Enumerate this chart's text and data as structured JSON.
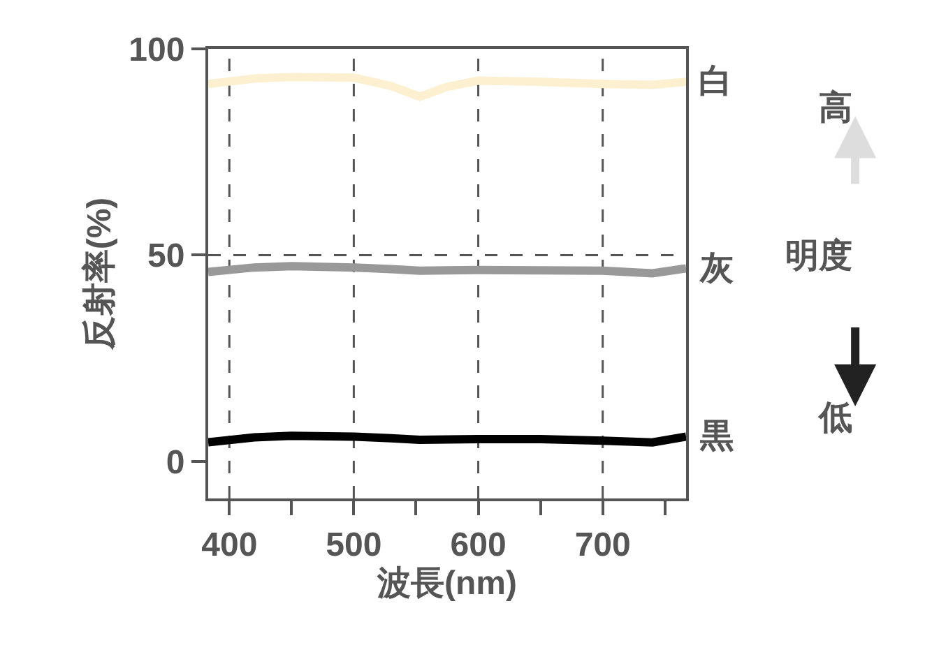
{
  "chart_data": {
    "type": "line",
    "xlabel": "波長(nm)",
    "ylabel": "反射率(%)",
    "x": [
      383,
      420,
      450,
      500,
      530,
      553,
      575,
      600,
      650,
      700,
      740,
      767
    ],
    "series": [
      {
        "name": "白",
        "color": "#fdf0d0",
        "values": [
          91.5,
          92.8,
          93.2,
          93.0,
          91.0,
          88.4,
          90.8,
          92.3,
          92.0,
          91.5,
          91.3,
          92.0
        ]
      },
      {
        "name": "灰",
        "color": "#999999",
        "values": [
          45.9,
          47.0,
          47.3,
          47.0,
          46.6,
          46.2,
          46.3,
          46.4,
          46.3,
          46.2,
          45.6,
          46.8
        ]
      },
      {
        "name": "黒",
        "color": "#000000",
        "values": [
          4.6,
          5.8,
          6.2,
          6.0,
          5.6,
          5.2,
          5.3,
          5.4,
          5.4,
          5.0,
          4.6,
          6.0
        ]
      }
    ],
    "xlim": [
      383,
      767
    ],
    "ylim": [
      -9,
      100
    ],
    "xticks": [
      400,
      {
        "value": 450,
        "label": null
      },
      500,
      {
        "value": 550,
        "label": null
      },
      600,
      {
        "value": 650,
        "label": null
      },
      700,
      {
        "value": 750,
        "label": null
      }
    ],
    "yticks": [
      0,
      50,
      100
    ],
    "ref_lines": [
      {
        "axis": "x",
        "value": 400,
        "line_style": "dashed",
        "color": "#555555"
      },
      {
        "axis": "x",
        "value": 500,
        "line_style": "dashed",
        "color": "#555555"
      },
      {
        "axis": "x",
        "value": 600,
        "line_style": "dashed",
        "color": "#555555"
      },
      {
        "axis": "x",
        "value": 700,
        "line_style": "dashed",
        "color": "#555555"
      },
      {
        "axis": "y",
        "value": 50,
        "line_style": "dashed",
        "color": "#555555"
      }
    ],
    "annotations": [
      "高",
      "明度",
      "低"
    ],
    "grid": false,
    "legend": false,
    "marker": "none",
    "line_style": "solid"
  }
}
